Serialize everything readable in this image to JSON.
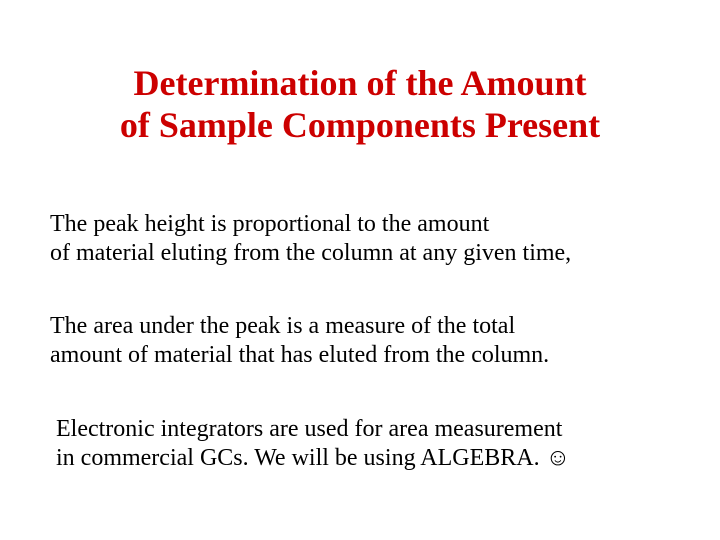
{
  "title_color": "#cc0000",
  "body_color": "#000000",
  "background_color": "#ffffff",
  "title": {
    "line1": "Determination of the Amount",
    "line2": "of Sample Components Present"
  },
  "paragraphs": {
    "p1": {
      "line1": "The peak height is proportional to the amount",
      "line2": "of material eluting from the column at any given time,"
    },
    "p2": {
      "line1": "The area under the peak is a measure of the total",
      "line2": "amount of material that has eluted from the column."
    },
    "p3": {
      "line1": "Electronic integrators are used for area measurement",
      "line2": "in commercial GCs. We will be using ALGEBRA. ☺"
    }
  }
}
